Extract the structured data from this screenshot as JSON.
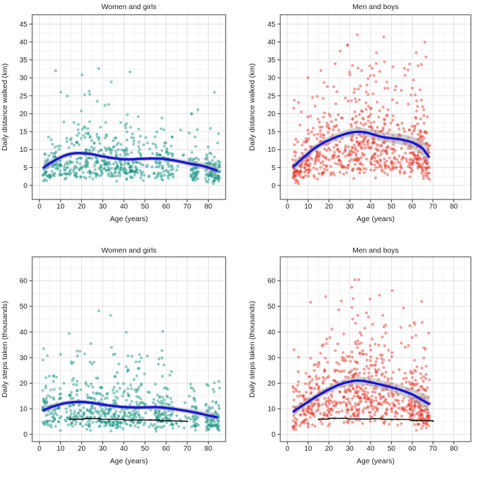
{
  "figure": {
    "background": "#ffffff",
    "column_titles": [
      "Women and girls",
      "Men and boys"
    ],
    "row_ylabels": [
      "Daily distance walked (km)",
      "Daily steps taken (thousands)"
    ],
    "xlabel": "Age (years)"
  },
  "style": {
    "female_point_color": "#0f9180",
    "male_point_color": "#e62e21",
    "point_opacity": 0.45,
    "point_radius": 2.1,
    "trend_color": "#1717d9",
    "band_color": "#a9a9a9",
    "median_color": "#111111",
    "grid_major": "#e0e0e0",
    "grid_minor": "#efefef",
    "panel_border": "#3c3c3c",
    "tick_color": "#333333",
    "text_color": "#1a1a1a"
  },
  "chart_data": [
    {
      "id": "women-distance",
      "type": "scatter",
      "title": "Women and girls",
      "xlabel": "Age (years)",
      "ylabel": "Daily distance walked (km)",
      "group": "female",
      "x_ticks": [
        0,
        10,
        20,
        30,
        40,
        50,
        60,
        70,
        80
      ],
      "y_ticks": [
        0,
        5,
        10,
        15,
        20,
        25,
        30,
        35,
        40,
        45
      ],
      "x_minor": 5,
      "y_minor": 2.5,
      "xlim": [
        -3.4,
        88.2
      ],
      "ylim": [
        -3.9,
        47.6
      ],
      "trend": [
        [
          2,
          5.0
        ],
        [
          5,
          6.2
        ],
        [
          8,
          7.2
        ],
        [
          11,
          8.1
        ],
        [
          14,
          8.7
        ],
        [
          17,
          9.0
        ],
        [
          20,
          9.0
        ],
        [
          23,
          8.85
        ],
        [
          26,
          8.6
        ],
        [
          29,
          8.2
        ],
        [
          32,
          7.9
        ],
        [
          35,
          7.6
        ],
        [
          38,
          7.4
        ],
        [
          41,
          7.3
        ],
        [
          44,
          7.3
        ],
        [
          47,
          7.4
        ],
        [
          50,
          7.45
        ],
        [
          53,
          7.5
        ],
        [
          56,
          7.5
        ],
        [
          59,
          7.4
        ],
        [
          62,
          7.15
        ],
        [
          65,
          6.85
        ],
        [
          68,
          6.5
        ],
        [
          71,
          6.1
        ],
        [
          74,
          5.8
        ],
        [
          77,
          5.5
        ],
        [
          80,
          5.0
        ],
        [
          84,
          4.2
        ]
      ],
      "band": [
        [
          2,
          1.2
        ],
        [
          8,
          0.8
        ],
        [
          16,
          0.6
        ],
        [
          30,
          0.55
        ],
        [
          45,
          0.5
        ],
        [
          60,
          0.6
        ],
        [
          72,
          0.8
        ],
        [
          84,
          1.2
        ]
      ],
      "median_line": null,
      "scatter": {
        "seed": 11,
        "n": 700,
        "sigma": 0.62,
        "clip": 33.2,
        "age_clusters": [
          [
            2,
            10,
            0.9
          ],
          [
            12,
            28,
            1.7
          ],
          [
            29,
            48,
            2.3
          ],
          [
            49,
            54,
            0.2
          ],
          [
            55,
            63,
            1.0
          ],
          [
            64,
            71,
            0.12
          ],
          [
            72,
            75,
            0.5
          ],
          [
            79,
            85,
            0.85
          ]
        ]
      }
    },
    {
      "id": "men-distance",
      "type": "scatter",
      "title": "Men and boys",
      "xlabel": "Age (years)",
      "ylabel": "Daily distance walked (km)",
      "group": "male",
      "x_ticks": [
        0,
        10,
        20,
        30,
        40,
        50,
        60,
        70,
        80
      ],
      "y_ticks": [
        0,
        5,
        10,
        15,
        20,
        25,
        30,
        35,
        40,
        45
      ],
      "x_minor": 5,
      "y_minor": 2.5,
      "xlim": [
        -3.4,
        88.2
      ],
      "ylim": [
        -3.9,
        47.6
      ],
      "trend": [
        [
          3,
          5.3
        ],
        [
          6,
          6.9
        ],
        [
          9,
          8.4
        ],
        [
          12,
          9.9
        ],
        [
          15,
          11.1
        ],
        [
          18,
          12.1
        ],
        [
          21,
          12.9
        ],
        [
          24,
          13.6
        ],
        [
          27,
          14.2
        ],
        [
          30,
          14.7
        ],
        [
          33,
          14.95
        ],
        [
          36,
          14.9
        ],
        [
          39,
          14.6
        ],
        [
          42,
          14.1
        ],
        [
          45,
          13.6
        ],
        [
          48,
          13.3
        ],
        [
          51,
          13.1
        ],
        [
          54,
          12.9
        ],
        [
          57,
          12.5
        ],
        [
          60,
          12.0
        ],
        [
          63,
          11.1
        ],
        [
          65,
          10.3
        ],
        [
          68,
          8.0
        ]
      ],
      "band": [
        [
          3,
          1.3
        ],
        [
          10,
          1.0
        ],
        [
          20,
          0.95
        ],
        [
          33,
          1.1
        ],
        [
          45,
          1.25
        ],
        [
          55,
          1.5
        ],
        [
          62,
          1.8
        ],
        [
          68,
          2.6
        ]
      ],
      "median_line": null,
      "scatter": {
        "seed": 23,
        "n": 760,
        "sigma": 0.6,
        "clip": 42.2,
        "age_clusters": [
          [
            3,
            11,
            0.9
          ],
          [
            12,
            30,
            1.8
          ],
          [
            31,
            48,
            2.3
          ],
          [
            49,
            58,
            0.8
          ],
          [
            59,
            68,
            1.6
          ]
        ]
      }
    },
    {
      "id": "women-steps",
      "type": "scatter",
      "title": "Women and girls",
      "xlabel": "Age (years)",
      "ylabel": "Daily steps taken (thousands)",
      "group": "female",
      "x_ticks": [
        0,
        10,
        20,
        30,
        40,
        50,
        60,
        70,
        80
      ],
      "y_ticks": [
        0,
        10,
        20,
        30,
        40,
        50,
        60
      ],
      "x_minor": 5,
      "y_minor": 5,
      "xlim": [
        -3.4,
        88.2
      ],
      "ylim": [
        -2.8,
        69.3
      ],
      "trend": [
        [
          2,
          9.5
        ],
        [
          5,
          10.5
        ],
        [
          8,
          11.3
        ],
        [
          11,
          12.0
        ],
        [
          14,
          12.4
        ],
        [
          17,
          12.65
        ],
        [
          20,
          12.7
        ],
        [
          23,
          12.5
        ],
        [
          26,
          12.2
        ],
        [
          29,
          11.8
        ],
        [
          32,
          11.4
        ],
        [
          35,
          11.1
        ],
        [
          38,
          10.8
        ],
        [
          41,
          10.65
        ],
        [
          44,
          10.55
        ],
        [
          47,
          10.5
        ],
        [
          50,
          10.55
        ],
        [
          53,
          10.6
        ],
        [
          56,
          10.6
        ],
        [
          59,
          10.45
        ],
        [
          62,
          10.15
        ],
        [
          65,
          9.8
        ],
        [
          68,
          9.4
        ],
        [
          71,
          9.0
        ],
        [
          74,
          8.5
        ],
        [
          77,
          8.0
        ],
        [
          80,
          7.4
        ],
        [
          84,
          6.7
        ]
      ],
      "band": [
        [
          2,
          1.4
        ],
        [
          8,
          1.0
        ],
        [
          20,
          0.85
        ],
        [
          40,
          0.8
        ],
        [
          55,
          0.85
        ],
        [
          70,
          1.0
        ],
        [
          84,
          1.4
        ]
      ],
      "median_line": [
        [
          14.5,
          5.45
        ],
        [
          14.5,
          5.9
        ],
        [
          21,
          5.9
        ],
        [
          21,
          6.15
        ],
        [
          29,
          6.15
        ],
        [
          29,
          5.95
        ],
        [
          40,
          5.85
        ],
        [
          40,
          5.65
        ],
        [
          50,
          5.6
        ],
        [
          57,
          5.6
        ],
        [
          57,
          5.35
        ],
        [
          66,
          5.25
        ],
        [
          70,
          5.15
        ],
        [
          70,
          4.75
        ]
      ],
      "scatter": {
        "seed": 37,
        "n": 700,
        "sigma": 0.62,
        "clip": 51.4,
        "age_clusters": [
          [
            2,
            10,
            0.9
          ],
          [
            12,
            28,
            1.7
          ],
          [
            29,
            48,
            2.3
          ],
          [
            49,
            54,
            0.2
          ],
          [
            55,
            63,
            1.0
          ],
          [
            64,
            71,
            0.12
          ],
          [
            72,
            75,
            0.5
          ],
          [
            79,
            85,
            0.85
          ]
        ]
      }
    },
    {
      "id": "men-steps",
      "type": "scatter",
      "title": "Men and boys",
      "xlabel": "Age (years)",
      "ylabel": "Daily steps taken (thousands)",
      "group": "male",
      "x_ticks": [
        0,
        10,
        20,
        30,
        40,
        50,
        60,
        70,
        80
      ],
      "y_ticks": [
        0,
        10,
        20,
        30,
        40,
        50,
        60
      ],
      "x_minor": 5,
      "y_minor": 5,
      "xlim": [
        -3.4,
        88.2
      ],
      "ylim": [
        -2.8,
        69.3
      ],
      "trend": [
        [
          3,
          9.0
        ],
        [
          6,
          10.6
        ],
        [
          9,
          12.2
        ],
        [
          12,
          13.8
        ],
        [
          15,
          15.3
        ],
        [
          18,
          16.7
        ],
        [
          21,
          18.0
        ],
        [
          24,
          19.1
        ],
        [
          27,
          20.0
        ],
        [
          30,
          20.6
        ],
        [
          33,
          21.0
        ],
        [
          36,
          20.9
        ],
        [
          39,
          20.5
        ],
        [
          42,
          20.0
        ],
        [
          45,
          19.4
        ],
        [
          48,
          18.8
        ],
        [
          51,
          18.2
        ],
        [
          54,
          17.5
        ],
        [
          57,
          16.6
        ],
        [
          60,
          15.6
        ],
        [
          63,
          14.3
        ],
        [
          65,
          13.3
        ],
        [
          68,
          11.9
        ]
      ],
      "band": [
        [
          3,
          1.7
        ],
        [
          10,
          1.3
        ],
        [
          20,
          1.3
        ],
        [
          33,
          1.6
        ],
        [
          45,
          1.7
        ],
        [
          55,
          2.0
        ],
        [
          62,
          2.4
        ],
        [
          68,
          3.2
        ]
      ],
      "median_line": [
        [
          15,
          5.55
        ],
        [
          15,
          6.0
        ],
        [
          20,
          6.0
        ],
        [
          20,
          6.3
        ],
        [
          29,
          6.3
        ],
        [
          29,
          6.05
        ],
        [
          40,
          6.0
        ],
        [
          40,
          6.15
        ],
        [
          46,
          6.1
        ],
        [
          46,
          5.9
        ],
        [
          59,
          5.8
        ],
        [
          59,
          5.5
        ],
        [
          66,
          5.4
        ],
        [
          70,
          5.3
        ],
        [
          70,
          4.85
        ]
      ],
      "scatter": {
        "seed": 51,
        "n": 760,
        "sigma": 0.6,
        "clip": 60.4,
        "age_clusters": [
          [
            3,
            11,
            0.9
          ],
          [
            12,
            30,
            1.8
          ],
          [
            31,
            48,
            2.3
          ],
          [
            49,
            58,
            0.8
          ],
          [
            59,
            68,
            1.6
          ]
        ]
      }
    }
  ]
}
